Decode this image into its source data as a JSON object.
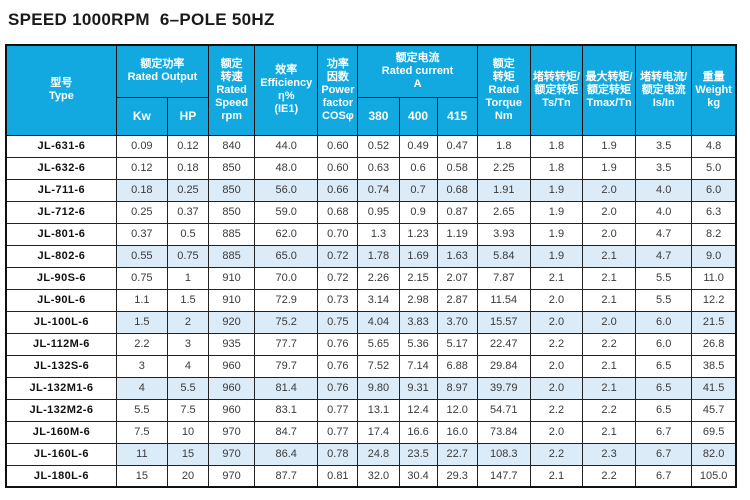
{
  "title": "SPEED 1000RPM  6–POLE 50HZ",
  "colors": {
    "header_bg": "#12a9e0",
    "header_text": "#ffffff",
    "row_highlight": "#dcebf8",
    "border": "#111111",
    "title_text": "#1a1a1a"
  },
  "table": {
    "header": {
      "type": "型号\nType",
      "rated_output": "额定功率\nRated Output",
      "kw": "Kw",
      "hp": "HP",
      "rated_speed": "额定\n转速\nRated\nSpeed\nrpm",
      "efficiency": "效率\nEfficiency\nη%\n(IE1)",
      "power_factor": "功率\n因数\nPower\nfactor\nCOSφ",
      "rated_current": "额定电流\nRated current\nA",
      "v380": "380",
      "v400": "400",
      "v415": "415",
      "rated_torque": "额定\n转矩\nRated\nTorque\nNm",
      "ts_tn": "堵转转矩/\n额定转矩\nTs/Tn",
      "tmax_tn": "最大转矩/\n额定转矩\nTmax/Tn",
      "is_in": "堵转电流/\n额定电流\nIs/In",
      "weight": "重量\nWeight\nkg"
    },
    "rows": [
      {
        "type": "JL-631-6",
        "highlighted": false,
        "values": [
          "0.09",
          "0.12",
          "840",
          "44.0",
          "0.60",
          "0.52",
          "0.49",
          "0.47",
          "1.8",
          "1.8",
          "1.9",
          "3.5",
          "4.8"
        ]
      },
      {
        "type": "JL-632-6",
        "highlighted": false,
        "values": [
          "0.12",
          "0.18",
          "850",
          "48.0",
          "0.60",
          "0.63",
          "0.6",
          "0.58",
          "2.25",
          "1.8",
          "1.9",
          "3.5",
          "5.0"
        ]
      },
      {
        "type": "JL-711-6",
        "highlighted": true,
        "values": [
          "0.18",
          "0.25",
          "850",
          "56.0",
          "0.66",
          "0.74",
          "0.7",
          "0.68",
          "1.91",
          "1.9",
          "2.0",
          "4.0",
          "6.0"
        ]
      },
      {
        "type": "JL-712-6",
        "highlighted": false,
        "values": [
          "0.25",
          "0.37",
          "850",
          "59.0",
          "0.68",
          "0.95",
          "0.9",
          "0.87",
          "2.65",
          "1.9",
          "2.0",
          "4.0",
          "6.3"
        ]
      },
      {
        "type": "JL-801-6",
        "highlighted": false,
        "values": [
          "0.37",
          "0.5",
          "885",
          "62.0",
          "0.70",
          "1.3",
          "1.23",
          "1.19",
          "3.93",
          "1.9",
          "2.0",
          "4.7",
          "8.2"
        ]
      },
      {
        "type": "JL-802-6",
        "highlighted": true,
        "values": [
          "0.55",
          "0.75",
          "885",
          "65.0",
          "0.72",
          "1.78",
          "1.69",
          "1.63",
          "5.84",
          "1.9",
          "2.1",
          "4.7",
          "9.0"
        ]
      },
      {
        "type": "JL-90S-6",
        "highlighted": false,
        "values": [
          "0.75",
          "1",
          "910",
          "70.0",
          "0.72",
          "2.26",
          "2.15",
          "2.07",
          "7.87",
          "2.1",
          "2.1",
          "5.5",
          "11.0"
        ]
      },
      {
        "type": "JL-90L-6",
        "highlighted": false,
        "values": [
          "1.1",
          "1.5",
          "910",
          "72.9",
          "0.73",
          "3.14",
          "2.98",
          "2.87",
          "11.54",
          "2.0",
          "2.1",
          "5.5",
          "12.2"
        ]
      },
      {
        "type": "JL-100L-6",
        "highlighted": true,
        "values": [
          "1.5",
          "2",
          "920",
          "75.2",
          "0.75",
          "4.04",
          "3.83",
          "3.70",
          "15.57",
          "2.0",
          "2.0",
          "6.0",
          "21.5"
        ]
      },
      {
        "type": "JL-112M-6",
        "highlighted": false,
        "values": [
          "2.2",
          "3",
          "935",
          "77.7",
          "0.76",
          "5.65",
          "5.36",
          "5.17",
          "22.47",
          "2.2",
          "2.2",
          "6.0",
          "26.8"
        ]
      },
      {
        "type": "JL-132S-6",
        "highlighted": false,
        "values": [
          "3",
          "4",
          "960",
          "79.7",
          "0.76",
          "7.52",
          "7.14",
          "6.88",
          "29.84",
          "2.0",
          "2.1",
          "6.5",
          "38.5"
        ]
      },
      {
        "type": "JL-132M1-6",
        "highlighted": true,
        "values": [
          "4",
          "5.5",
          "960",
          "81.4",
          "0.76",
          "9.80",
          "9.31",
          "8.97",
          "39.79",
          "2.0",
          "2.1",
          "6.5",
          "41.5"
        ]
      },
      {
        "type": "JL-132M2-6",
        "highlighted": false,
        "values": [
          "5.5",
          "7.5",
          "960",
          "83.1",
          "0.77",
          "13.1",
          "12.4",
          "12.0",
          "54.71",
          "2.2",
          "2.2",
          "6.5",
          "45.7"
        ]
      },
      {
        "type": "JL-160M-6",
        "highlighted": false,
        "values": [
          "7.5",
          "10",
          "970",
          "84.7",
          "0.77",
          "17.4",
          "16.6",
          "16.0",
          "73.84",
          "2.0",
          "2.1",
          "6.7",
          "69.5"
        ]
      },
      {
        "type": "JL-160L-6",
        "highlighted": true,
        "values": [
          "11",
          "15",
          "970",
          "86.4",
          "0.78",
          "24.8",
          "23.5",
          "22.7",
          "108.3",
          "2.2",
          "2.3",
          "6.7",
          "82.0"
        ]
      },
      {
        "type": "JL-180L-6",
        "highlighted": false,
        "values": [
          "15",
          "20",
          "970",
          "87.7",
          "0.81",
          "32.0",
          "30.4",
          "29.3",
          "147.7",
          "2.1",
          "2.2",
          "6.7",
          "105.0"
        ]
      }
    ]
  }
}
